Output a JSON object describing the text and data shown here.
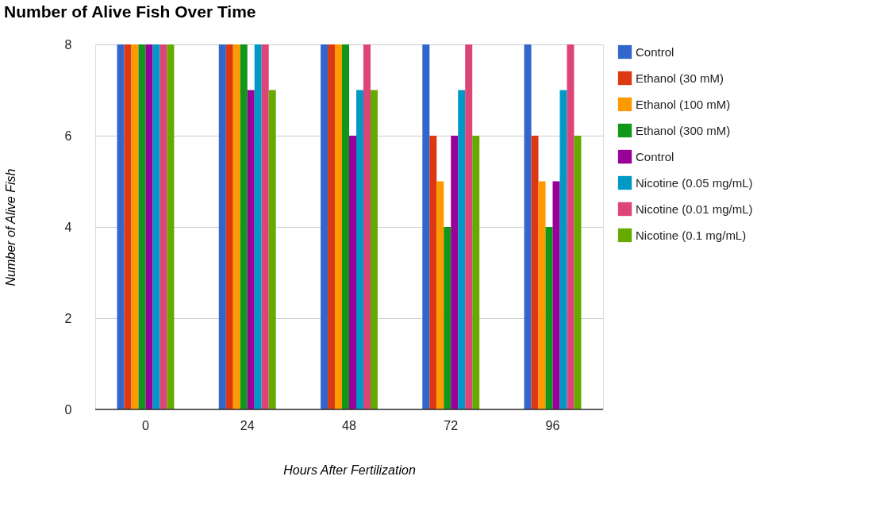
{
  "chart_data": {
    "type": "bar",
    "title": "Number of Alive Fish Over Time",
    "xlabel": "Hours After Fertilization",
    "ylabel": "Number of Alive Fish",
    "categories": [
      "0",
      "24",
      "48",
      "72",
      "96"
    ],
    "series": [
      {
        "name": "Control",
        "color": "#3366cc",
        "values": [
          8,
          8,
          8,
          8,
          8
        ]
      },
      {
        "name": "Ethanol (30 mM)",
        "color": "#dc3912",
        "values": [
          8,
          8,
          8,
          6,
          6
        ]
      },
      {
        "name": "Ethanol (100 mM)",
        "color": "#ff9900",
        "values": [
          8,
          8,
          8,
          5,
          5
        ]
      },
      {
        "name": "Ethanol (300 mM)",
        "color": "#109618",
        "values": [
          8,
          8,
          8,
          4,
          4
        ]
      },
      {
        "name": "Control",
        "color": "#990099",
        "values": [
          8,
          7,
          6,
          6,
          5
        ]
      },
      {
        "name": "Nicotine (0.05 mg/mL)",
        "color": "#0099c6",
        "values": [
          8,
          8,
          7,
          7,
          7
        ]
      },
      {
        "name": "Nicotine (0.01 mg/mL)",
        "color": "#dd4477",
        "values": [
          8,
          8,
          8,
          8,
          8
        ]
      },
      {
        "name": "Nicotine (0.1 mg/mL)",
        "color": "#66aa00",
        "values": [
          8,
          7,
          7,
          6,
          6
        ]
      }
    ],
    "ylim": [
      0,
      8
    ],
    "yticks": [
      0,
      2,
      4,
      6,
      8
    ],
    "grid": "y",
    "legend": "right"
  }
}
